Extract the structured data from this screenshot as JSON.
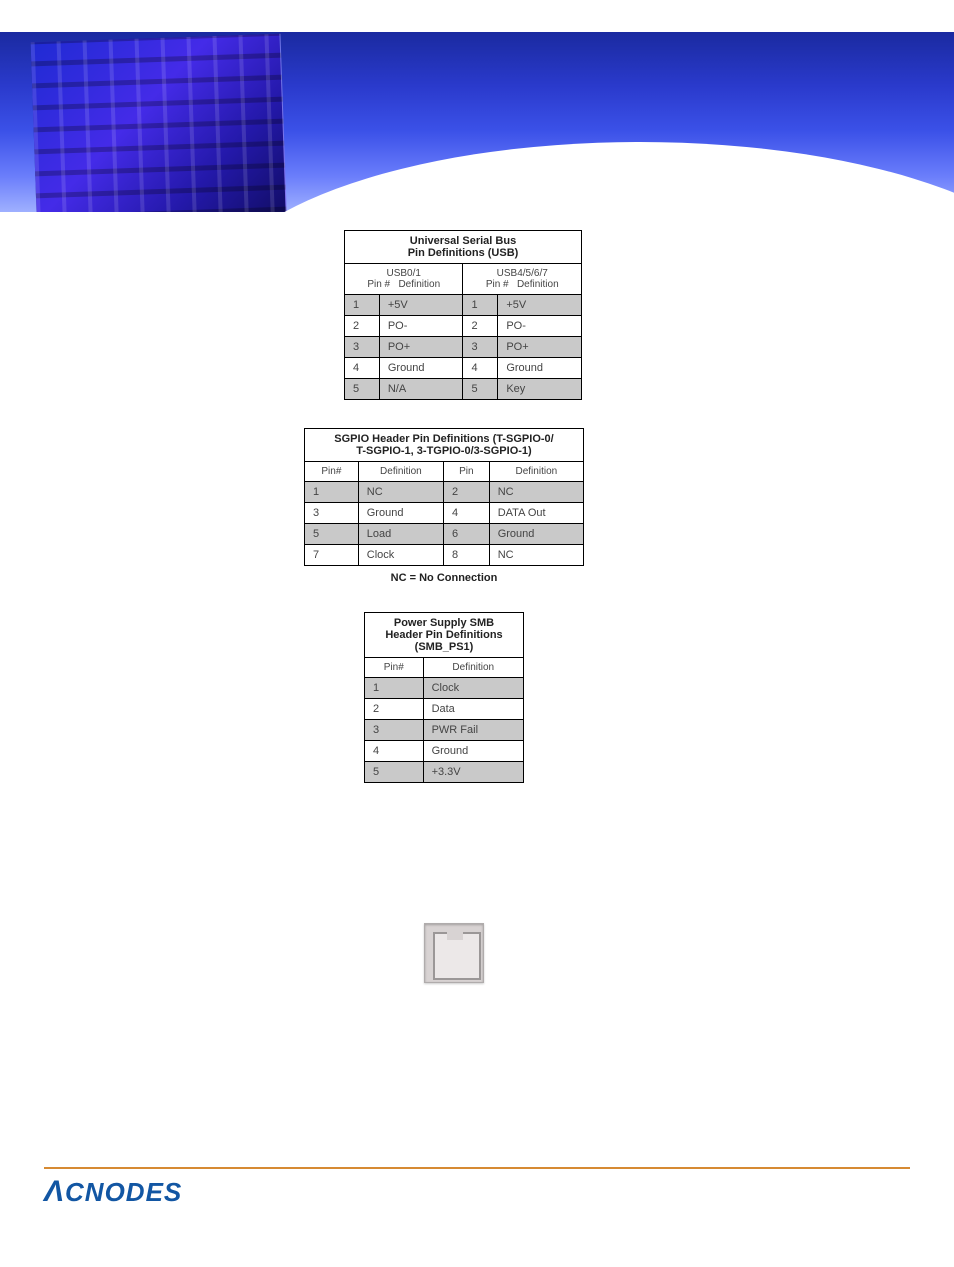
{
  "colors": {
    "banner_gradient": [
      "#1a2aa0",
      "#2a3acc",
      "#3b51e8",
      "#6a7dfb",
      "#9fb0ff"
    ],
    "shade_bg": "#c9c9c9",
    "footer_rule": "#d68a33",
    "logo_color": "#1256a3"
  },
  "typography": {
    "base_font": "Arial",
    "table_fontsize_pt": 8,
    "title_fontsize_pt": 8
  },
  "usb_table": {
    "title_line1": "Universal Serial Bus",
    "title_line2": "Pin Definitions (USB)",
    "left_header_top": "USB0/1",
    "right_header_top": "USB4/5/6/7",
    "col_pin": "Pin #",
    "col_def": "Definition",
    "rows": [
      {
        "l_pin": "1",
        "l_def": "+5V",
        "r_pin": "1",
        "r_def": "+5V",
        "shade": true
      },
      {
        "l_pin": "2",
        "l_def": "PO-",
        "r_pin": "2",
        "r_def": "PO-",
        "shade": false
      },
      {
        "l_pin": "3",
        "l_def": "PO+",
        "r_pin": "3",
        "r_def": "PO+",
        "shade": true
      },
      {
        "l_pin": "4",
        "l_def": "Ground",
        "r_pin": "4",
        "r_def": "Ground",
        "shade": false
      },
      {
        "l_pin": "5",
        "l_def": "N/A",
        "r_pin": "5",
        "r_def": "Key",
        "shade": true
      }
    ]
  },
  "sgpio_table": {
    "title_line1": "SGPIO Header Pin Definitions (T-SGPIO-0/",
    "title_line2": "T-SGPIO-1, 3-TGPIO-0/3-SGPIO-1)",
    "col_pin_l": "Pin#",
    "col_def_l": "Definition",
    "col_pin_r": "Pin",
    "col_def_r": "Definition",
    "rows": [
      {
        "l_pin": "1",
        "l_def": "NC",
        "r_pin": "2",
        "r_def": "NC",
        "shade": true
      },
      {
        "l_pin": "3",
        "l_def": "Ground",
        "r_pin": "4",
        "r_def": "DATA Out",
        "shade": false
      },
      {
        "l_pin": "5",
        "l_def": "Load",
        "r_pin": "6",
        "r_def": "Ground",
        "shade": true
      },
      {
        "l_pin": "7",
        "l_def": "Clock",
        "r_pin": "8",
        "r_def": "NC",
        "shade": false
      }
    ],
    "footnote": "NC = No Connection"
  },
  "smb_table": {
    "title_line1": "Power Supply SMB",
    "title_line2": "Header Pin Definitions",
    "title_line3": "(SMB_PS1)",
    "col_pin": "Pin#",
    "col_def": "Definition",
    "rows": [
      {
        "pin": "1",
        "def": "Clock",
        "shade": true
      },
      {
        "pin": "2",
        "def": "Data",
        "shade": false
      },
      {
        "pin": "3",
        "def": "PWR Fail",
        "shade": true
      },
      {
        "pin": "4",
        "def": "Ground",
        "shade": false
      },
      {
        "pin": "5",
        "def": "+3.3V",
        "shade": true
      }
    ]
  },
  "footer": {
    "brand": "CNODES",
    "brand_prefix": "Λ"
  }
}
